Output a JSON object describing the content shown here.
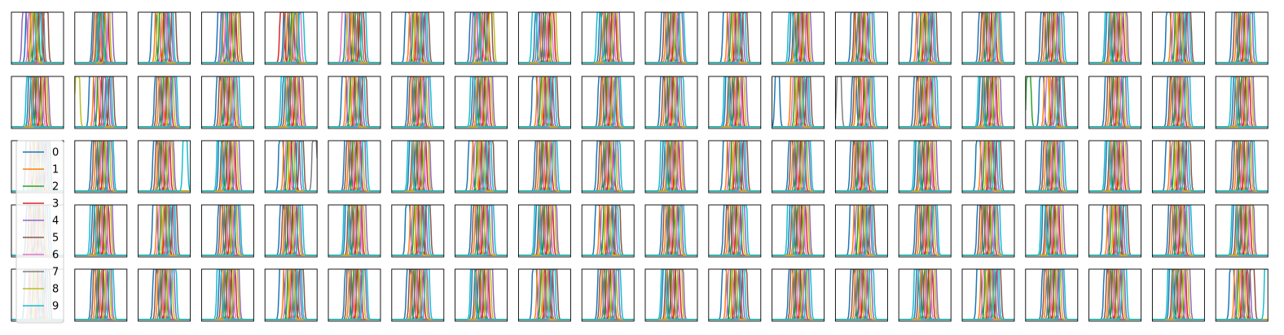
{
  "chart_data": {
    "type": "line",
    "grid_rows": 5,
    "grid_cols": 20,
    "title": "",
    "xlabel": "",
    "ylabel": "",
    "ticks_visible": false,
    "grid": false,
    "legend": {
      "placement": "left, spanning rows 3-5 of column 1",
      "entries": [
        "0",
        "1",
        "2",
        "3",
        "4",
        "5",
        "6",
        "7",
        "8",
        "9"
      ]
    },
    "series_colors": [
      "#1f77b4",
      "#ff7f0e",
      "#2ca02c",
      "#d62728",
      "#9467bd",
      "#8c564b",
      "#e377c2",
      "#7f7f7f",
      "#bcbd22",
      "#17becf"
    ],
    "curve_shape": "narrow peaks reaching the top of each panel",
    "panels": [
      [
        [
          0.32,
          0.41,
          0.48,
          0.55,
          0.25,
          0.66,
          0.37,
          0.58,
          0.44,
          0.52
        ],
        [
          0.38,
          0.45,
          0.52,
          0.6,
          0.68,
          0.41,
          0.55,
          0.47,
          0.63,
          0.5
        ],
        [
          0.3,
          0.37,
          0.45,
          0.53,
          0.6,
          0.68,
          0.49,
          0.56,
          0.41,
          0.63
        ],
        [
          0.35,
          0.46,
          0.54,
          0.62,
          0.41,
          0.7,
          0.5,
          0.58,
          0.66,
          0.44
        ],
        [
          0.4,
          0.47,
          0.55,
          0.33,
          0.6,
          0.51,
          0.65,
          0.43,
          0.58,
          0.7
        ],
        [
          0.37,
          0.48,
          0.56,
          0.64,
          0.45,
          0.52,
          0.3,
          0.6,
          0.41,
          0.68
        ],
        [
          0.3,
          0.38,
          0.45,
          0.52,
          0.6,
          0.67,
          0.42,
          0.56,
          0.49,
          0.63
        ],
        [
          0.33,
          0.44,
          0.52,
          0.6,
          0.38,
          0.66,
          0.48,
          0.56,
          0.7,
          0.42
        ],
        [
          0.36,
          0.48,
          0.56,
          0.64,
          0.44,
          0.52,
          0.6,
          0.4,
          0.68,
          0.3
        ],
        [
          0.38,
          0.46,
          0.53,
          0.61,
          0.68,
          0.42,
          0.57,
          0.49,
          0.64,
          0.33
        ],
        [
          0.35,
          0.44,
          0.52,
          0.59,
          0.67,
          0.4,
          0.55,
          0.48,
          0.62,
          0.7
        ],
        [
          0.32,
          0.4,
          0.47,
          0.55,
          0.62,
          0.7,
          0.44,
          0.58,
          0.51,
          0.66
        ],
        [
          0.4,
          0.48,
          0.55,
          0.63,
          0.7,
          0.45,
          0.59,
          0.52,
          0.66,
          0.36
        ],
        [
          0.34,
          0.43,
          0.51,
          0.58,
          0.66,
          0.4,
          0.54,
          0.47,
          0.62,
          0.7
        ],
        [
          0.3,
          0.38,
          0.46,
          0.53,
          0.61,
          0.68,
          0.42,
          0.57,
          0.5,
          0.64
        ],
        [
          0.36,
          0.45,
          0.52,
          0.6,
          0.67,
          0.41,
          0.56,
          0.48,
          0.64,
          0.7
        ],
        [
          0.33,
          0.42,
          0.5,
          0.58,
          0.65,
          0.38,
          0.54,
          0.46,
          0.61,
          0.69
        ],
        [
          0.38,
          0.46,
          0.54,
          0.62,
          0.69,
          0.43,
          0.58,
          0.5,
          0.66,
          0.35
        ],
        [
          0.31,
          0.4,
          0.48,
          0.55,
          0.63,
          0.7,
          0.44,
          0.59,
          0.52,
          0.67
        ],
        [
          0.35,
          0.44,
          0.51,
          0.59,
          0.66,
          0.4,
          0.55,
          0.48,
          0.62,
          0.7
        ]
      ],
      [
        [
          0.37,
          0.45,
          0.52,
          0.6,
          0.67,
          0.41,
          0.56,
          0.48,
          0.64,
          0.33
        ],
        [
          0.32,
          0.4,
          0.48,
          0.55,
          0.63,
          0.7,
          0.44,
          0.59,
          0.05,
          0.66
        ],
        [
          0.36,
          0.44,
          0.52,
          0.59,
          0.67,
          0.4,
          0.55,
          0.48,
          0.63,
          0.7
        ],
        [
          0.33,
          0.42,
          0.49,
          0.57,
          0.64,
          0.38,
          0.53,
          0.45,
          0.61,
          0.68
        ],
        [
          0.39,
          0.47,
          0.54,
          0.62,
          0.69,
          0.43,
          0.58,
          0.51,
          0.66,
          0.35
        ],
        [
          0.3,
          0.38,
          0.46,
          0.54,
          0.61,
          0.69,
          0.42,
          0.57,
          0.5,
          0.65
        ],
        [
          0.35,
          0.43,
          0.51,
          0.58,
          0.66,
          0.39,
          0.55,
          0.47,
          0.62,
          0.7
        ],
        [
          0.38,
          0.46,
          0.53,
          0.61,
          0.68,
          0.42,
          0.57,
          0.49,
          0.65,
          0.34
        ],
        [
          0.31,
          0.4,
          0.47,
          0.55,
          0.62,
          0.7,
          0.44,
          0.58,
          0.51,
          0.66
        ],
        [
          0.36,
          0.44,
          0.52,
          0.6,
          0.67,
          0.41,
          0.56,
          0.48,
          0.63,
          0.7
        ],
        [
          0.33,
          0.42,
          0.5,
          0.57,
          0.65,
          0.38,
          0.53,
          0.46,
          0.61,
          0.69
        ],
        [
          0.37,
          0.45,
          0.53,
          0.6,
          0.68,
          0.42,
          0.57,
          0.49,
          0.64,
          0.34
        ],
        [
          0.1,
          0.4,
          0.48,
          0.55,
          0.63,
          0.7,
          0.44,
          0.59,
          0.52,
          0.66
        ],
        [
          0.36,
          0.44,
          0.51,
          0.59,
          0.66,
          0.4,
          0.55,
          0.07,
          0.63,
          0.7
        ],
        [
          0.33,
          0.42,
          0.5,
          0.58,
          0.65,
          0.38,
          0.54,
          0.46,
          0.61,
          0.69
        ],
        [
          0.38,
          0.46,
          0.54,
          0.61,
          0.69,
          0.43,
          0.58,
          0.5,
          0.65,
          0.35
        ],
        [
          0.31,
          0.4,
          0.06,
          0.55,
          0.62,
          0.7,
          0.44,
          0.58,
          0.51,
          0.67
        ],
        [
          0.35,
          0.44,
          0.51,
          0.59,
          0.66,
          0.4,
          0.55,
          0.48,
          0.62,
          0.7
        ],
        [
          0.33,
          0.41,
          0.49,
          0.57,
          0.64,
          0.38,
          0.53,
          0.45,
          0.61,
          0.68
        ],
        [
          0.38,
          0.46,
          0.53,
          0.61,
          0.68,
          0.42,
          0.57,
          0.49,
          0.65,
          0.34
        ]
      ],
      [
        [
          0.32,
          0.4,
          0.48,
          0.55,
          0.63,
          0.7,
          0.44,
          0.59,
          0.52,
          0.66
        ],
        [
          0.36,
          0.44,
          0.52,
          0.59,
          0.67,
          0.4,
          0.55,
          0.48,
          0.63,
          0.7
        ],
        [
          0.33,
          0.42,
          0.49,
          0.57,
          0.64,
          0.38,
          0.53,
          0.45,
          0.61,
          0.9
        ],
        [
          0.37,
          0.45,
          0.53,
          0.6,
          0.68,
          0.42,
          0.57,
          0.49,
          0.64,
          0.34
        ],
        [
          0.31,
          0.4,
          0.47,
          0.55,
          0.62,
          0.7,
          0.44,
          0.95,
          0.51,
          0.66
        ],
        [
          0.35,
          0.43,
          0.51,
          0.58,
          0.66,
          0.39,
          0.55,
          0.47,
          0.62,
          0.7
        ],
        [
          0.38,
          0.46,
          0.54,
          0.62,
          0.69,
          0.43,
          0.58,
          0.5,
          0.66,
          0.35
        ],
        [
          0.3,
          0.38,
          0.46,
          0.54,
          0.61,
          0.69,
          0.42,
          0.57,
          0.5,
          0.65
        ],
        [
          0.36,
          0.44,
          0.51,
          0.59,
          0.66,
          0.4,
          0.55,
          0.48,
          0.63,
          0.7
        ],
        [
          0.33,
          0.42,
          0.5,
          0.57,
          0.65,
          0.38,
          0.53,
          0.46,
          0.61,
          0.69
        ],
        [
          0.38,
          0.46,
          0.53,
          0.61,
          0.68,
          0.42,
          0.57,
          0.49,
          0.65,
          0.34
        ],
        [
          0.32,
          0.4,
          0.48,
          0.55,
          0.63,
          0.7,
          0.44,
          0.59,
          0.52,
          0.66
        ],
        [
          0.36,
          0.44,
          0.52,
          0.59,
          0.67,
          0.4,
          0.55,
          0.48,
          0.63,
          0.7
        ],
        [
          0.33,
          0.42,
          0.49,
          0.57,
          0.64,
          0.38,
          0.53,
          0.45,
          0.61,
          0.68
        ],
        [
          0.37,
          0.45,
          0.53,
          0.6,
          0.68,
          0.42,
          0.57,
          0.49,
          0.64,
          0.34
        ],
        [
          0.31,
          0.4,
          0.47,
          0.55,
          0.62,
          0.7,
          0.44,
          0.58,
          0.51,
          0.66
        ],
        [
          0.35,
          0.43,
          0.51,
          0.58,
          0.66,
          0.39,
          0.55,
          0.47,
          0.62,
          0.7
        ],
        [
          0.38,
          0.46,
          0.54,
          0.62,
          0.69,
          0.43,
          0.58,
          0.5,
          0.66,
          0.35
        ],
        [
          0.3,
          0.38,
          0.46,
          0.54,
          0.61,
          0.69,
          0.42,
          0.57,
          0.5,
          0.65
        ],
        [
          0.36,
          0.44,
          0.51,
          0.59,
          0.66,
          0.4,
          0.55,
          0.48,
          0.63,
          0.7
        ]
      ],
      [
        [
          0.33,
          0.42,
          0.5,
          0.57,
          0.65,
          0.38,
          0.53,
          0.46,
          0.61,
          0.69
        ],
        [
          0.38,
          0.46,
          0.53,
          0.61,
          0.68,
          0.42,
          0.57,
          0.49,
          0.65,
          0.34
        ],
        [
          0.32,
          0.4,
          0.48,
          0.55,
          0.63,
          0.7,
          0.44,
          0.59,
          0.52,
          0.66
        ],
        [
          0.36,
          0.44,
          0.52,
          0.59,
          0.67,
          0.4,
          0.55,
          0.48,
          0.63,
          0.7
        ],
        [
          0.33,
          0.42,
          0.49,
          0.57,
          0.64,
          0.38,
          0.53,
          0.45,
          0.61,
          0.68
        ],
        [
          0.37,
          0.45,
          0.53,
          0.6,
          0.68,
          0.42,
          0.57,
          0.49,
          0.64,
          0.34
        ],
        [
          0.31,
          0.4,
          0.47,
          0.55,
          0.62,
          0.7,
          0.44,
          0.58,
          0.51,
          0.66
        ],
        [
          0.35,
          0.43,
          0.51,
          0.58,
          0.66,
          0.39,
          0.55,
          0.47,
          0.62,
          0.7
        ],
        [
          0.38,
          0.46,
          0.54,
          0.62,
          0.69,
          0.43,
          0.58,
          0.5,
          0.66,
          0.35
        ],
        [
          0.3,
          0.38,
          0.46,
          0.54,
          0.61,
          0.69,
          0.42,
          0.57,
          0.5,
          0.65
        ],
        [
          0.36,
          0.44,
          0.51,
          0.59,
          0.66,
          0.4,
          0.55,
          0.48,
          0.63,
          0.7
        ],
        [
          0.33,
          0.42,
          0.5,
          0.57,
          0.65,
          0.38,
          0.53,
          0.46,
          0.61,
          0.69
        ],
        [
          0.38,
          0.46,
          0.53,
          0.61,
          0.68,
          0.42,
          0.57,
          0.49,
          0.65,
          0.34
        ],
        [
          0.32,
          0.4,
          0.48,
          0.55,
          0.63,
          0.7,
          0.44,
          0.59,
          0.52,
          0.66
        ],
        [
          0.36,
          0.44,
          0.52,
          0.59,
          0.67,
          0.4,
          0.55,
          0.48,
          0.63,
          0.7
        ],
        [
          0.33,
          0.42,
          0.49,
          0.57,
          0.64,
          0.38,
          0.53,
          0.45,
          0.61,
          0.68
        ],
        [
          0.37,
          0.45,
          0.53,
          0.6,
          0.68,
          0.42,
          0.57,
          0.49,
          0.64,
          0.34
        ],
        [
          0.31,
          0.4,
          0.47,
          0.55,
          0.62,
          0.7,
          0.44,
          0.58,
          0.51,
          0.66
        ],
        [
          0.35,
          0.43,
          0.51,
          0.58,
          0.66,
          0.39,
          0.55,
          0.47,
          0.62,
          0.7
        ],
        [
          0.38,
          0.46,
          0.54,
          0.62,
          0.69,
          0.43,
          0.58,
          0.5,
          0.66,
          0.35
        ]
      ],
      [
        [
          0.3,
          0.38,
          0.46,
          0.54,
          0.61,
          0.69,
          0.42,
          0.57,
          0.5,
          0.65
        ],
        [
          0.36,
          0.44,
          0.51,
          0.59,
          0.66,
          0.4,
          0.55,
          0.48,
          0.63,
          0.7
        ],
        [
          0.33,
          0.42,
          0.5,
          0.57,
          0.65,
          0.38,
          0.53,
          0.46,
          0.61,
          0.69
        ],
        [
          0.38,
          0.46,
          0.53,
          0.61,
          0.68,
          0.42,
          0.57,
          0.49,
          0.65,
          0.34
        ],
        [
          0.32,
          0.4,
          0.48,
          0.55,
          0.63,
          0.7,
          0.44,
          0.59,
          0.52,
          0.66
        ],
        [
          0.36,
          0.44,
          0.52,
          0.59,
          0.67,
          0.4,
          0.55,
          0.48,
          0.63,
          0.7
        ],
        [
          0.33,
          0.42,
          0.49,
          0.57,
          0.64,
          0.38,
          0.53,
          0.45,
          0.61,
          0.68
        ],
        [
          0.37,
          0.45,
          0.53,
          0.6,
          0.68,
          0.42,
          0.57,
          0.49,
          0.64,
          0.34
        ],
        [
          0.31,
          0.4,
          0.47,
          0.55,
          0.62,
          0.7,
          0.44,
          0.58,
          0.51,
          0.66
        ],
        [
          0.35,
          0.43,
          0.51,
          0.58,
          0.66,
          0.39,
          0.55,
          0.47,
          0.62,
          0.7
        ],
        [
          0.38,
          0.46,
          0.54,
          0.62,
          0.69,
          0.43,
          0.58,
          0.5,
          0.66,
          0.35
        ],
        [
          0.3,
          0.38,
          0.46,
          0.54,
          0.61,
          0.69,
          0.42,
          0.57,
          0.5,
          0.65
        ],
        [
          0.36,
          0.44,
          0.51,
          0.59,
          0.66,
          0.4,
          0.55,
          0.48,
          0.63,
          0.7
        ],
        [
          0.33,
          0.42,
          0.5,
          0.57,
          0.65,
          0.38,
          0.53,
          0.46,
          0.61,
          0.69
        ],
        [
          0.38,
          0.46,
          0.53,
          0.61,
          0.68,
          0.42,
          0.57,
          0.49,
          0.65,
          0.34
        ],
        [
          0.32,
          0.4,
          0.48,
          0.55,
          0.63,
          0.7,
          0.44,
          0.59,
          0.52,
          0.66
        ],
        [
          0.36,
          0.44,
          0.52,
          0.59,
          0.67,
          0.4,
          0.55,
          0.48,
          0.63,
          0.7
        ],
        [
          0.33,
          0.42,
          0.49,
          0.57,
          0.64,
          0.38,
          0.53,
          0.45,
          0.61,
          0.68
        ],
        [
          0.37,
          0.45,
          0.53,
          0.6,
          0.68,
          0.42,
          0.57,
          0.49,
          0.64,
          0.34
        ],
        [
          0.31,
          0.4,
          0.47,
          0.55,
          0.62,
          0.7,
          0.44,
          0.58,
          0.51,
          0.98
        ]
      ]
    ]
  }
}
